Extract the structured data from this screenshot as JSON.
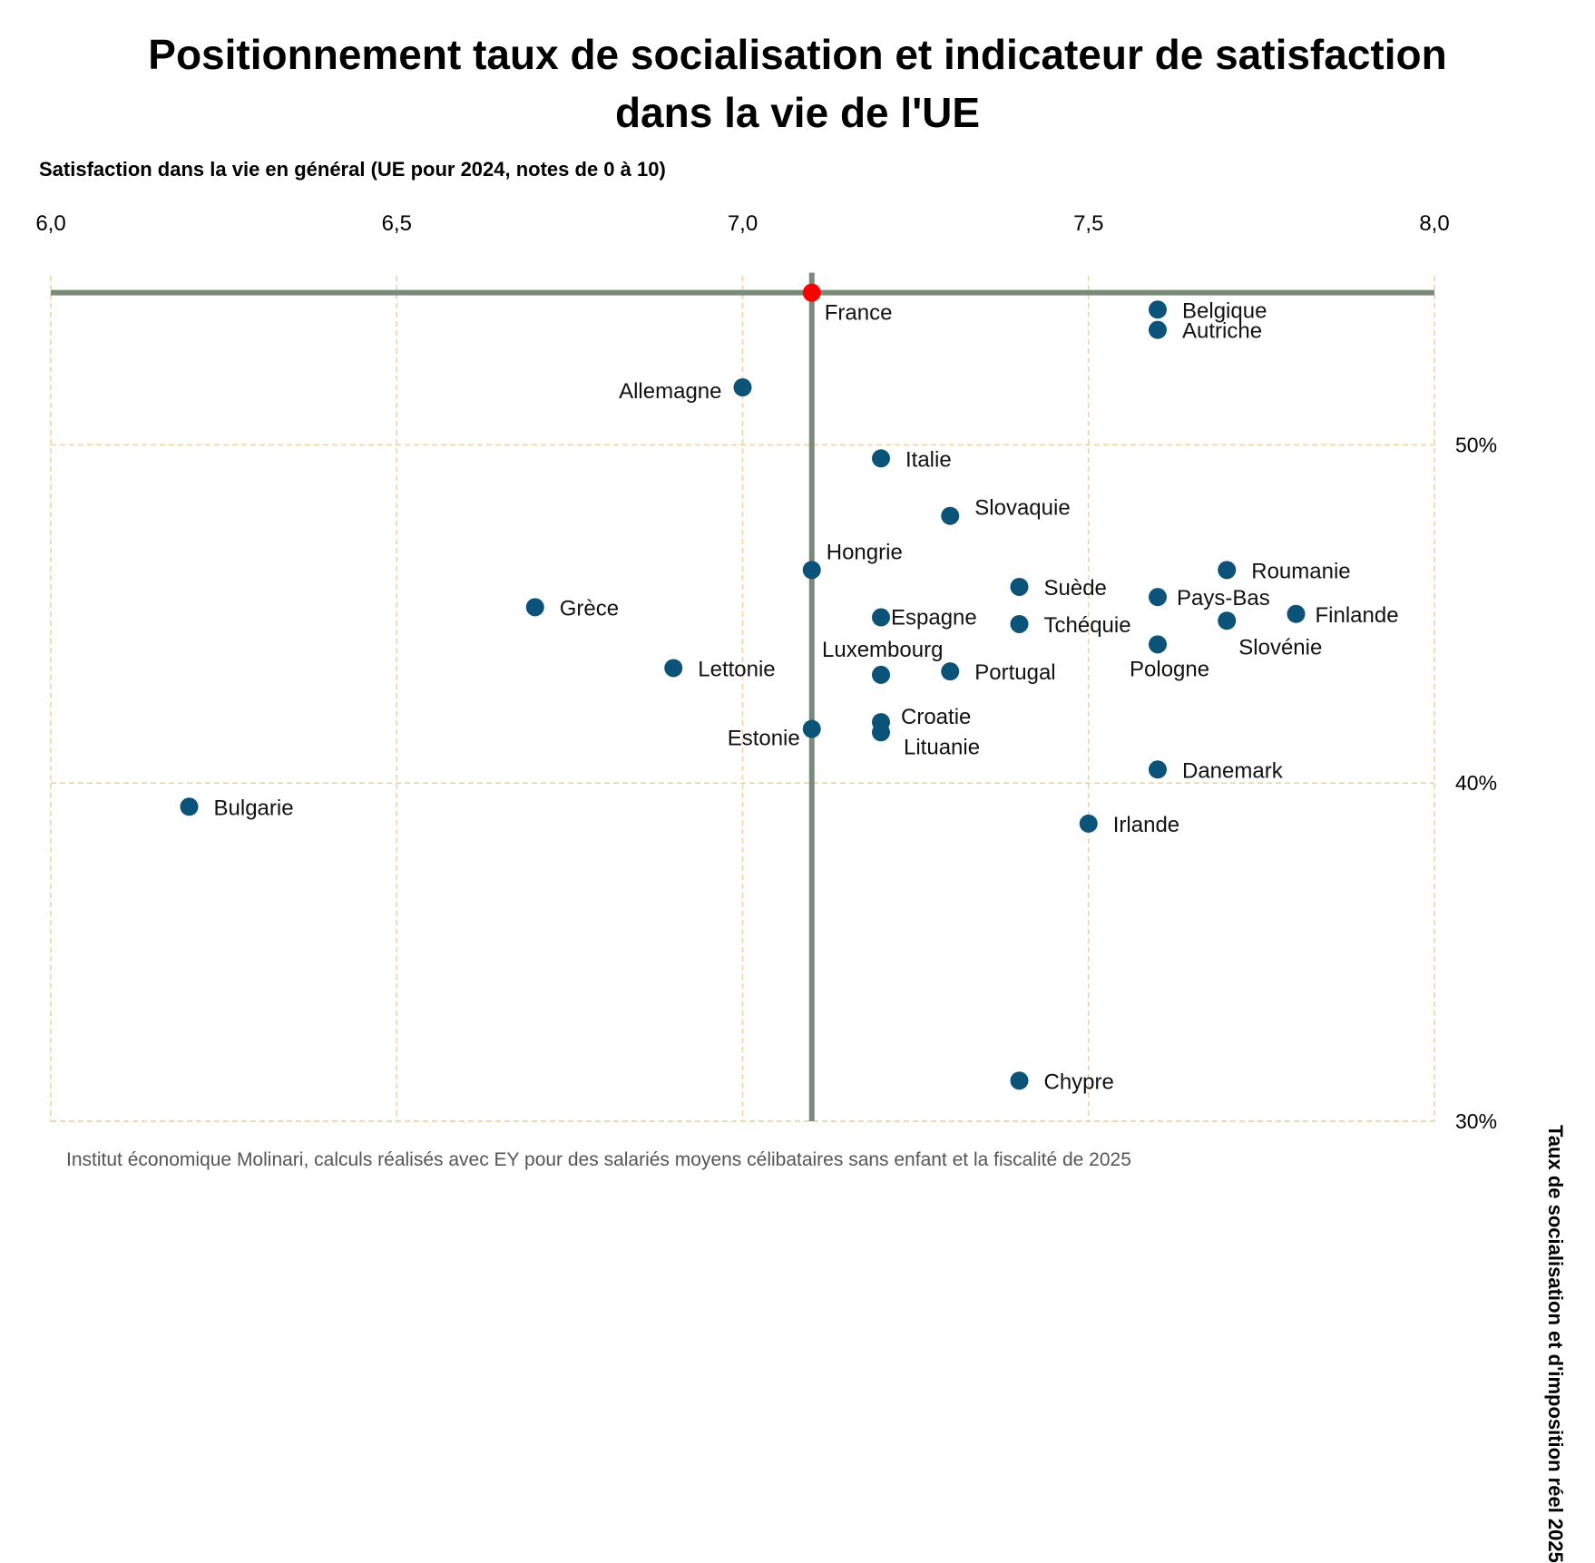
{
  "chart_data": {
    "type": "scatter",
    "title": [
      "Positionnement taux de socialisation et indicateur de satisfaction",
      "dans la vie de l'UE"
    ],
    "xlabel": "Satisfaction dans la vie en général (UE pour 2024, notes de 0 à 10)",
    "ylabel": "Taux de socialisation et d'imposition réel 2025",
    "source": "Institut économique Molinari, calculs réalisés avec EY pour des salariés moyens célibataires sans enfant et la fiscalité de 2025",
    "xlim": [
      6.0,
      8.0
    ],
    "ylim": [
      30,
      55
    ],
    "x_ticks": [
      "6,0",
      "6,5",
      "7,0",
      "7,5",
      "8,0"
    ],
    "x_tick_values": [
      6.0,
      6.5,
      7.0,
      7.5,
      8.0
    ],
    "y_ticks": [
      "30%",
      "40%",
      "50%"
    ],
    "y_tick_values": [
      30,
      40,
      50
    ],
    "x_axis_position": "top",
    "y_axis_position": "right",
    "grid": true,
    "reference_point": "France",
    "colors": {
      "point": "#0b5378",
      "highlight": "#ff0000",
      "reference_lines": "#7a8a78",
      "grid": "#ecd5a5"
    },
    "points": [
      {
        "label": "France",
        "x": 7.1,
        "y": 54.5
      },
      {
        "label": "Belgique",
        "x": 7.6,
        "y": 54.0
      },
      {
        "label": "Autriche",
        "x": 7.6,
        "y": 53.4
      },
      {
        "label": "Allemagne",
        "x": 7.0,
        "y": 51.7
      },
      {
        "label": "Italie",
        "x": 7.2,
        "y": 49.6
      },
      {
        "label": "Slovaquie",
        "x": 7.3,
        "y": 47.9
      },
      {
        "label": "Hongrie",
        "x": 7.1,
        "y": 46.3
      },
      {
        "label": "Roumanie",
        "x": 7.7,
        "y": 46.3
      },
      {
        "label": "Suède",
        "x": 7.4,
        "y": 45.8
      },
      {
        "label": "Pays-Bas",
        "x": 7.6,
        "y": 45.5
      },
      {
        "label": "Grèce",
        "x": 6.7,
        "y": 45.2
      },
      {
        "label": "Espagne",
        "x": 7.2,
        "y": 44.9
      },
      {
        "label": "Finlande",
        "x": 7.8,
        "y": 45.0
      },
      {
        "label": "Slovénie",
        "x": 7.7,
        "y": 44.8
      },
      {
        "label": "Tchéquie",
        "x": 7.4,
        "y": 44.7
      },
      {
        "label": "Pologne",
        "x": 7.6,
        "y": 44.1
      },
      {
        "label": "Lettonie",
        "x": 6.9,
        "y": 43.4
      },
      {
        "label": "Portugal",
        "x": 7.3,
        "y": 43.3
      },
      {
        "label": "Luxembourg",
        "x": 7.2,
        "y": 43.2
      },
      {
        "label": "Croatie",
        "x": 7.2,
        "y": 41.8
      },
      {
        "label": "Lituanie",
        "x": 7.2,
        "y": 41.5
      },
      {
        "label": "Estonie",
        "x": 7.1,
        "y": 41.6
      },
      {
        "label": "Danemark",
        "x": 7.6,
        "y": 40.4
      },
      {
        "label": "Bulgarie",
        "x": 6.2,
        "y": 39.3
      },
      {
        "label": "Irlande",
        "x": 7.5,
        "y": 38.8
      },
      {
        "label": "Chypre",
        "x": 7.4,
        "y": 31.2
      }
    ]
  }
}
